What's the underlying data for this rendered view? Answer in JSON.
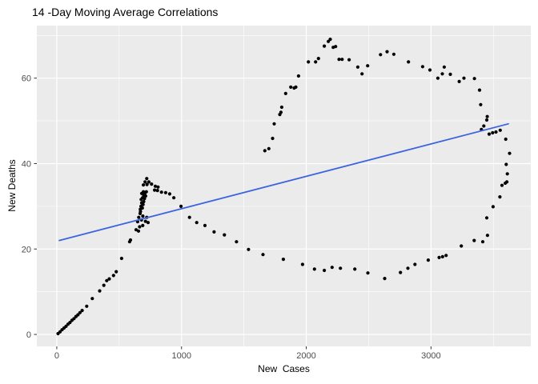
{
  "chart_data": {
    "type": "scatter",
    "title": "14 -Day Moving Average Correlations",
    "xlabel": "New  Cases",
    "ylabel": "New Deaths",
    "legend": "none",
    "grid": "ggplot-gray-panel-white-gridlines",
    "panel_bg": "#EBEBEB",
    "grid_color": "#FFFFFF",
    "tick_color": "#333333",
    "tick_label_color": "#4D4D4D",
    "point_color": "#000000",
    "xlim": [
      -160,
      3800
    ],
    "ylim": [
      -2.8,
      72.3
    ],
    "x_ticks": [
      0,
      1000,
      2000,
      3000
    ],
    "x_minor_ticks": [
      500,
      1500,
      2500,
      3500
    ],
    "y_ticks": [
      0,
      20,
      40,
      60
    ],
    "y_minor_ticks": [
      10,
      30,
      50,
      70
    ],
    "trend_line": {
      "type": "linear",
      "x1": 20,
      "y1": 22.0,
      "x2": 3620,
      "y2": 49.3,
      "color": "#3D63E0"
    },
    "points": [
      [
        10,
        0.2
      ],
      [
        26,
        0.6
      ],
      [
        42,
        1.1
      ],
      [
        58,
        1.5
      ],
      [
        74,
        1.9
      ],
      [
        90,
        2.4
      ],
      [
        106,
        2.8
      ],
      [
        122,
        3.3
      ],
      [
        138,
        3.7
      ],
      [
        154,
        4.2
      ],
      [
        170,
        4.6
      ],
      [
        186,
        5.1
      ],
      [
        203,
        5.6
      ],
      [
        240,
        6.6
      ],
      [
        285,
        8.4
      ],
      [
        344,
        10.2
      ],
      [
        377,
        11.5
      ],
      [
        400,
        12.6
      ],
      [
        421,
        13.0
      ],
      [
        455,
        13.8
      ],
      [
        477,
        14.7
      ],
      [
        520,
        17.8
      ],
      [
        584,
        21.7
      ],
      [
        591,
        22.1
      ],
      [
        636,
        24.5
      ],
      [
        648,
        26.4
      ],
      [
        655,
        24.2
      ],
      [
        664,
        25.2
      ],
      [
        689,
        25.5
      ],
      [
        657,
        27.4
      ],
      [
        668,
        28.3
      ],
      [
        679,
        26.8
      ],
      [
        690,
        27.7
      ],
      [
        711,
        26.5
      ],
      [
        721,
        27.4
      ],
      [
        732,
        26.2
      ],
      [
        670,
        29.3
      ],
      [
        675,
        30.0
      ],
      [
        681,
        30.8
      ],
      [
        676,
        31.6
      ],
      [
        686,
        29.6
      ],
      [
        692,
        30.4
      ],
      [
        697,
        31.1
      ],
      [
        688,
        32.0
      ],
      [
        697,
        32.6
      ],
      [
        703,
        31.8
      ],
      [
        706,
        33.0
      ],
      [
        694,
        33.4
      ],
      [
        681,
        33.0
      ],
      [
        712,
        32.4
      ],
      [
        718,
        33.4
      ],
      [
        671,
        28.8
      ],
      [
        694,
        35.0
      ],
      [
        708,
        35.7
      ],
      [
        721,
        36.5
      ],
      [
        723,
        35.1
      ],
      [
        738,
        35.7
      ],
      [
        760,
        35.2
      ],
      [
        784,
        33.8
      ],
      [
        790,
        34.7
      ],
      [
        807,
        33.7
      ],
      [
        812,
        34.5
      ],
      [
        839,
        33.3
      ],
      [
        873,
        33.2
      ],
      [
        905,
        32.9
      ],
      [
        938,
        32.0
      ],
      [
        996,
        30.0
      ],
      [
        1064,
        27.4
      ],
      [
        1122,
        26.2
      ],
      [
        1188,
        25.5
      ],
      [
        1261,
        24.0
      ],
      [
        1344,
        23.3
      ],
      [
        1441,
        21.7
      ],
      [
        1537,
        19.9
      ],
      [
        1653,
        18.7
      ],
      [
        1816,
        17.6
      ],
      [
        1970,
        16.4
      ],
      [
        2066,
        15.3
      ],
      [
        2145,
        15.0
      ],
      [
        2207,
        15.7
      ],
      [
        2274,
        15.5
      ],
      [
        2389,
        15.3
      ],
      [
        2494,
        14.4
      ],
      [
        2629,
        13.1
      ],
      [
        2755,
        14.5
      ],
      [
        2815,
        15.5
      ],
      [
        2871,
        16.4
      ],
      [
        2978,
        17.4
      ],
      [
        3065,
        18.0
      ],
      [
        3093,
        18.2
      ],
      [
        3121,
        18.5
      ],
      [
        3243,
        20.7
      ],
      [
        3346,
        22.0
      ],
      [
        3415,
        21.7
      ],
      [
        3453,
        23.2
      ],
      [
        3447,
        27.3
      ],
      [
        3498,
        29.9
      ],
      [
        3552,
        32.2
      ],
      [
        3569,
        34.9
      ],
      [
        3595,
        35.4
      ],
      [
        3608,
        35.7
      ],
      [
        3612,
        37.6
      ],
      [
        3603,
        39.8
      ],
      [
        3630,
        42.4
      ],
      [
        3599,
        45.7
      ],
      [
        3555,
        47.8
      ],
      [
        3521,
        47.4
      ],
      [
        3494,
        47.2
      ],
      [
        3466,
        46.9
      ],
      [
        3423,
        48.8
      ],
      [
        3404,
        48.0
      ],
      [
        3447,
        50.2
      ],
      [
        3451,
        51.0
      ],
      [
        3398,
        53.8
      ],
      [
        3389,
        57.2
      ],
      [
        3348,
        59.9
      ],
      [
        3264,
        60.0
      ],
      [
        3226,
        59.2
      ],
      [
        3155,
        60.9
      ],
      [
        3106,
        62.6
      ],
      [
        3091,
        61.0
      ],
      [
        3055,
        60.0
      ],
      [
        2991,
        61.9
      ],
      [
        2933,
        62.7
      ],
      [
        2819,
        63.8
      ],
      [
        2702,
        65.6
      ],
      [
        2648,
        66.2
      ],
      [
        2595,
        65.5
      ],
      [
        2492,
        62.9
      ],
      [
        2447,
        61.0
      ],
      [
        2413,
        62.6
      ],
      [
        2344,
        64.3
      ],
      [
        2287,
        64.4
      ],
      [
        2263,
        64.4
      ],
      [
        2235,
        67.4
      ],
      [
        2216,
        67.2
      ],
      [
        2192,
        69.1
      ],
      [
        2177,
        68.6
      ],
      [
        2145,
        67.5
      ],
      [
        2098,
        64.6
      ],
      [
        2075,
        63.8
      ],
      [
        2017,
        63.8
      ],
      [
        1938,
        60.5
      ],
      [
        1916,
        57.9
      ],
      [
        1903,
        57.7
      ],
      [
        1876,
        57.9
      ],
      [
        1835,
        56.4
      ],
      [
        1803,
        53.2
      ],
      [
        1797,
        52.0
      ],
      [
        1788,
        51.5
      ],
      [
        1743,
        49.3
      ],
      [
        1730,
        45.9
      ],
      [
        1700,
        43.5
      ],
      [
        1668,
        43.0
      ]
    ]
  }
}
